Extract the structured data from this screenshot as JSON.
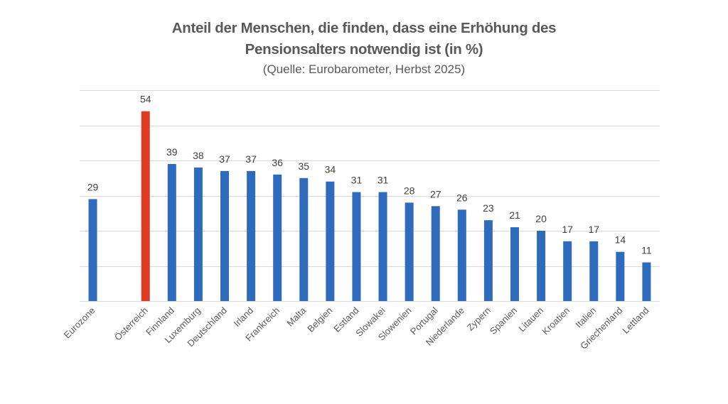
{
  "chart_data": {
    "type": "bar",
    "title": "Anteil der Menschen, die finden, dass eine Erhöhung des Pensionsalters notwendig ist (in %)",
    "title_line1": "Anteil der Menschen, die finden, dass eine Erhöhung des",
    "title_line2": "Pensionsalters notwendig ist (in %)",
    "subtitle": "(Quelle: Eurobarometer, Herbst 2025)",
    "xlabel": "",
    "ylabel": "",
    "ylim": [
      0,
      60
    ],
    "ytick_step": 10,
    "grid": true,
    "legend": "none",
    "categories": [
      "Eurozone",
      "",
      "Österreich",
      "Finnland",
      "Luxemburg",
      "Deutschland",
      "Irland",
      "Frankreich",
      "Malta",
      "Belgien",
      "Estland",
      "Slowakei",
      "Slowenien",
      "Portugal",
      "Niederlande",
      "Zypern",
      "Spanien",
      "Litauen",
      "Kroatien",
      "Italien",
      "Griechenland",
      "Lettland"
    ],
    "values": [
      29,
      null,
      54,
      39,
      38,
      37,
      37,
      36,
      35,
      34,
      31,
      31,
      28,
      27,
      26,
      23,
      21,
      20,
      17,
      17,
      14,
      11
    ],
    "colors": {
      "default": "#2e6bbd",
      "highlight": "#e03a22",
      "highlight_category": "Österreich",
      "grid": "#d9d9d9"
    }
  }
}
